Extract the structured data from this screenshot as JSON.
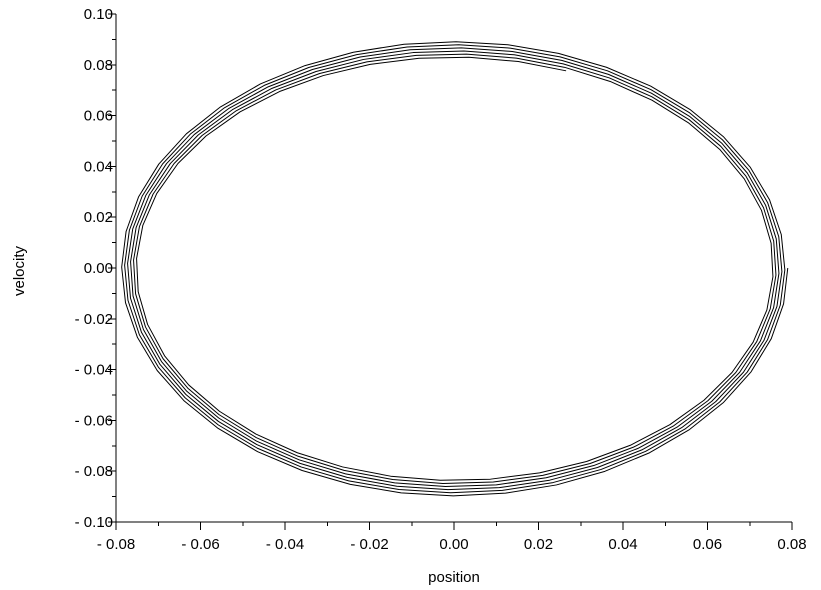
{
  "chart_data": {
    "type": "line",
    "title": "",
    "xlabel": "position",
    "ylabel": "velocity",
    "xlim": [
      -0.08,
      0.08
    ],
    "ylim": [
      -0.1,
      0.1
    ],
    "grid": false,
    "legend": "none",
    "line_color": "#000000",
    "x_ticks": [
      -0.08,
      -0.06,
      -0.04,
      -0.02,
      0.0,
      0.02,
      0.04,
      0.06,
      0.08
    ],
    "x_tick_labels": [
      "- 0.08",
      "- 0.06",
      "- 0.04",
      "- 0.02",
      "0.00",
      "0.02",
      "0.04",
      "0.06",
      "0.08"
    ],
    "y_ticks": [
      -0.1,
      -0.08,
      -0.06,
      -0.04,
      -0.02,
      0.0,
      0.02,
      0.04,
      0.06,
      0.08,
      0.1
    ],
    "y_tick_labels": [
      "- 0.10",
      "- 0.08",
      "- 0.06",
      "- 0.04",
      "- 0.02",
      "0.00",
      "0.02",
      "0.04",
      "0.06",
      "0.08",
      "0.10"
    ],
    "series": [
      {
        "curve": "phase-space spiral (damped oscillation, ~5 loops)",
        "start": {
          "x": 0.079,
          "y": 0.0
        },
        "end": {
          "x": 0.027,
          "y": 0.079
        },
        "x_amplitude_start": 0.079,
        "x_amplitude_end": 0.075,
        "y_amplitude_start": 0.09,
        "y_amplitude_end": 0.083,
        "loops": 5.1
      }
    ]
  }
}
